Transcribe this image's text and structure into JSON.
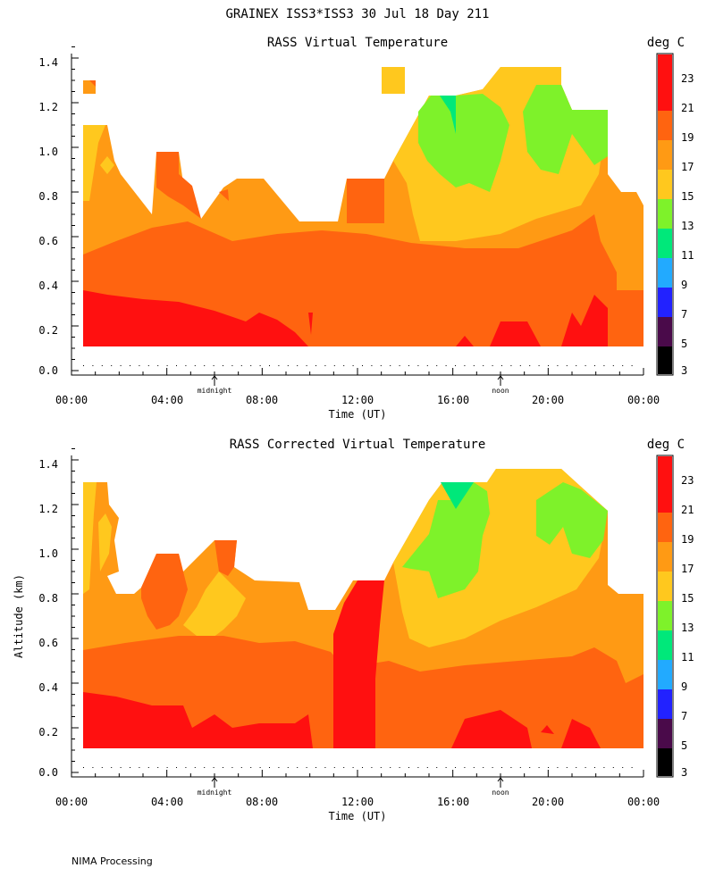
{
  "header": {
    "title": "GRAINEX ISS3*ISS3  30 Jul 18 Day 211"
  },
  "footer": {
    "label": "NIMA Processing"
  },
  "chart_data": [
    {
      "type": "heatmap",
      "title": "RASS Virtual Temperature",
      "xlabel": "Time (UT)",
      "ylabel": "",
      "x_tick_labels": [
        "00:00",
        "04:00",
        "08:00",
        "12:00",
        "16:00",
        "20:00",
        "00:00"
      ],
      "x_range_hours": [
        0,
        24
      ],
      "y_tick_labels": [
        "0.0",
        "0.2",
        "0.4",
        "0.6",
        "0.8",
        "1.0",
        "1.2",
        "1.4"
      ],
      "y_range_km": [
        0,
        1.45
      ],
      "annotations": [
        {
          "label": "midnight",
          "x_hours": 6
        },
        {
          "label": "noon",
          "x_hours": 18
        }
      ],
      "colorbar": {
        "title": "deg C",
        "labels": [
          "23",
          "21",
          "19",
          "17",
          "15",
          "13",
          "11",
          "9",
          "7",
          "5",
          "3"
        ]
      },
      "data_extent": {
        "time_hours": [
          0.5,
          24
        ],
        "altitude_km": [
          0.12,
          1.38
        ],
        "min_temp_c": 13,
        "max_temp_c": 23
      }
    },
    {
      "type": "heatmap",
      "title": "RASS Corrected Virtual Temperature",
      "xlabel": "Time (UT)",
      "ylabel": "Altitude (km)",
      "x_tick_labels": [
        "00:00",
        "04:00",
        "08:00",
        "12:00",
        "16:00",
        "20:00",
        "00:00"
      ],
      "x_range_hours": [
        0,
        24
      ],
      "y_tick_labels": [
        "0.0",
        "0.2",
        "0.4",
        "0.6",
        "0.8",
        "1.0",
        "1.2",
        "1.4"
      ],
      "y_range_km": [
        0,
        1.45
      ],
      "annotations": [
        {
          "label": "midnight",
          "x_hours": 6
        },
        {
          "label": "noon",
          "x_hours": 18
        }
      ],
      "colorbar": {
        "title": "deg C",
        "labels": [
          "23",
          "21",
          "19",
          "17",
          "15",
          "13",
          "11",
          "9",
          "7",
          "5",
          "3"
        ]
      },
      "data_extent": {
        "time_hours": [
          0.5,
          24
        ],
        "altitude_km": [
          0.12,
          1.38
        ],
        "min_temp_c": 12,
        "max_temp_c": 23
      }
    }
  ],
  "colors": {
    "c3": "#000000",
    "c5": "#4a0a4a",
    "c7": "#2222ff",
    "c9": "#22aaff",
    "c11": "#00e87a",
    "c13": "#7ef22a",
    "c15": "#ffc81e",
    "c17": "#ff9a14",
    "c19": "#ff6410",
    "c21": "#ff1010",
    "c23": "#ff1010"
  }
}
